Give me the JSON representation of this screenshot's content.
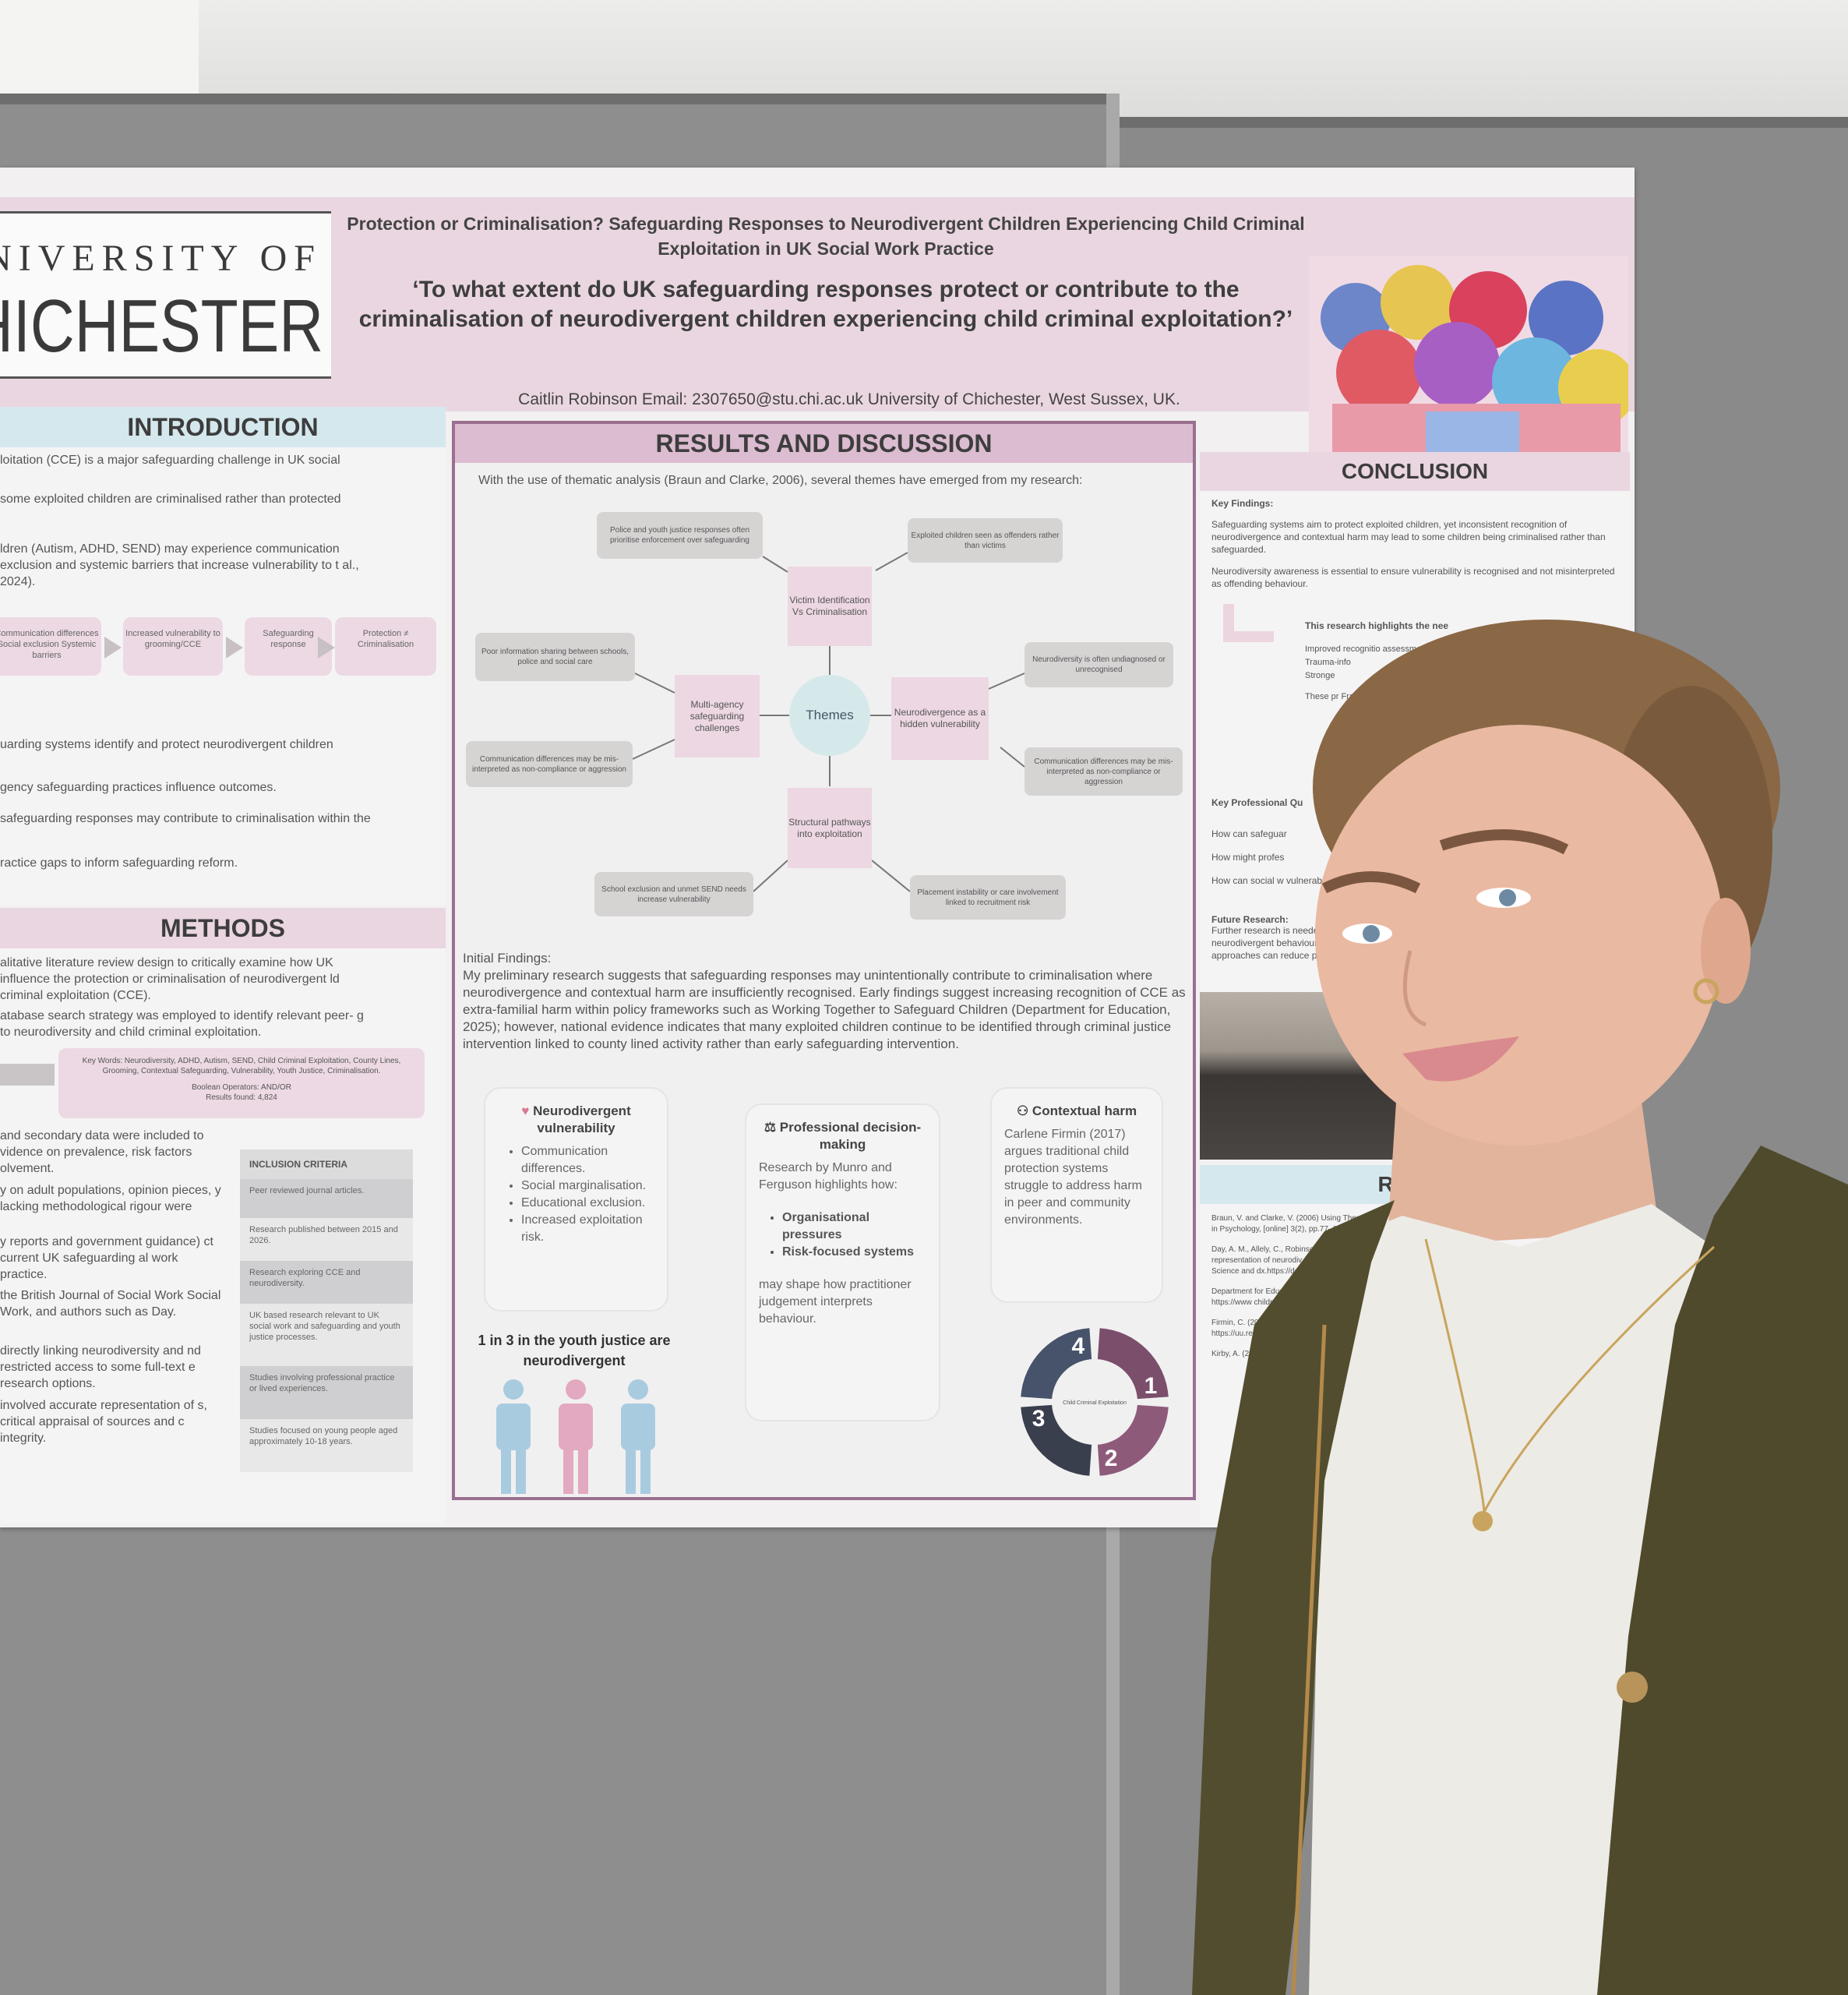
{
  "poster": {
    "logo": {
      "line1": "UNIVERSITY OF",
      "line2": "CHICHESTER"
    },
    "title": "Protection or Criminalisation? Safeguarding Responses to Neurodivergent Children Experiencing Child Criminal Exploitation in UK Social Work Practice",
    "question": "‘To what extent do UK safeguarding responses protect or contribute to the criminalisation of neurodivergent children experiencing child criminal exploitation?’",
    "author": "Caitlin Robinson  Email: 2307650@stu.chi.ac.uk  University of Chichester, West Sussex, UK.",
    "introduction": {
      "heading": "INTRODUCTION",
      "lines": [
        "loitation (CCE) is a major safeguarding challenge in UK social",
        "some exploited children are criminalised rather than protected",
        "ldren (Autism, ADHD, SEND) may experience communication exclusion and systemic barriers that increase vulnerability to t al., 2024)."
      ],
      "flow": [
        "Communication differences Social exclusion Systemic barriers",
        "Increased vulnerability to grooming/CCE",
        "Safeguarding response",
        "Protection ≠ Criminalisation"
      ],
      "aims": [
        "uarding systems identify and protect neurodivergent children",
        "gency safeguarding practices influence outcomes.",
        "safeguarding responses may contribute to criminalisation within the",
        "ractice gaps to inform safeguarding reform."
      ]
    },
    "methods": {
      "heading": "METHODS",
      "lines": [
        "alitative literature review design to critically examine how UK influence the protection or criminalisation of neurodivergent ld criminal exploitation (CCE).",
        "atabase search strategy was employed to identify relevant peer- g to neurodiversity and child criminal exploitation."
      ],
      "keywords": "Key Words: Neurodiversity, ADHD, Autism, SEND, Child Criminal Exploitation, County Lines, Grooming, Contextual Safeguarding, Vulnerability, Youth Justice, Criminalisation.",
      "boolean": "Boolean Operators: AND/OR",
      "results_found": "Results found: 4,824",
      "more": [
        "and secondary data were included to vidence on prevalence, risk factors olvement.",
        "y on adult populations, opinion pieces, y lacking methodological rigour were",
        "y reports and government guidance) ct current UK safeguarding al work practice.",
        "the British Journal of Social Work Social Work, and authors such as Day.",
        "directly linking neurodiversity and nd restricted access to some full-text e research options.",
        "involved accurate representation of s, critical appraisal of sources and c integrity."
      ],
      "inclusion_heading": "INCLUSION CRITERIA",
      "inclusion": [
        "Peer reviewed journal articles.",
        "Research published between 2015 and 2026.",
        "Research exploring CCE and neurodiversity.",
        "UK based research relevant to UK social work and safeguarding and youth justice processes.",
        "Studies involving professional practice or lived experiences.",
        "Studies focused on young people aged approximately 10-18 years."
      ]
    },
    "results": {
      "heading": "RESULTS AND DISCUSSION",
      "intro": "With the use of thematic analysis (Braun and Clarke, 2006), several themes have emerged from my research:",
      "center": "Themes",
      "themes": [
        "Victim Identification Vs Criminalisation",
        "Multi-agency safeguarding challenges",
        "Neurodivergence as a hidden vulnerability",
        "Structural pathways into exploitation"
      ],
      "subthemes": [
        "Police and youth justice responses often prioritise enforcement over safeguarding",
        "Exploited children seen as offenders rather than victims",
        "Poor information sharing between schools, police and social care",
        "Communication differences may be mis-interpreted as non-compliance or aggression",
        "Neurodiversity is often undiagnosed or unrecognised",
        "Communication differences may be mis-interpreted as non-compliance or aggression",
        "School exclusion and unmet SEND needs increase vulnerability",
        "Placement instability or care involvement linked to recruitment risk"
      ],
      "findings_label": "Initial Findings:",
      "findings": "My preliminary research suggests that safeguarding responses may unintentionally contribute to criminalisation where neurodivergence and contextual harm are insufficiently recognised. Early findings suggest increasing recognition of CCE as extra-familial harm within policy frameworks such as Working Together to Safeguard Children (Department for Education, 2025); however, national evidence indicates that many exploited children continue to be identified through criminal justice intervention linked to county lined activity rather than early safeguarding intervention.",
      "card1": {
        "icon": "heart-icon",
        "title": "Neurodivergent vulnerability",
        "items": [
          "Communication differences.",
          "Social marginalisation.",
          "Educational exclusion.",
          "Increased exploitation risk."
        ]
      },
      "card2": {
        "icon": "scales-icon",
        "title": "Professional decision-making",
        "text": "Research by Munro and Ferguson highlights how:",
        "items": [
          "Organisational pressures",
          "Risk-focused systems"
        ],
        "after": "may shape how practitioner judgement interprets behaviour."
      },
      "card3": {
        "icon": "people-icon",
        "title": "Contextual harm",
        "text": "Carlene Firmin (2017) argues traditional child protection systems struggle to address harm in peer and community environments."
      },
      "stat": "1 in 3 in the youth justice are neurodivergent",
      "stat_colors": [
        "#a9cbe0",
        "#e3a9c0",
        "#a9cbe0"
      ],
      "cycle": {
        "steps": [
          "1",
          "2",
          "3",
          "4"
        ],
        "center": "Child Criminal Exploitation",
        "colors": [
          "#7b4e6c",
          "#8e5a7a",
          "#3a3f4e",
          "#47536a"
        ]
      }
    },
    "conclusion": {
      "heading": "CONCLUSION",
      "key_findings": "Key Findings:",
      "points": [
        "Safeguarding systems aim to protect exploited children, yet inconsistent recognition of neurodivergence and contextual harm may lead to some children being criminalised rather than safeguarded.",
        "Neurodiversity awareness is essential to ensure vulnerability is recognised and not misinterpreted as offending behaviour."
      ],
      "highlight": "This research highlights the nee",
      "bullets": [
        "Improved recognitio assessments.",
        "Trauma-info",
        "Stronge"
      ],
      "these": "These pr Frame equ",
      "questions_label": "Key Professional Qu",
      "questions": [
        "How can safeguar",
        "How might profes",
        "How can social w vulnerability may be"
      ],
      "future_label": "Future Research:",
      "future": "Further research is needed neurodivergent behaviour w approaches can reduce pat"
    },
    "references": {
      "heading": "REFER",
      "items": [
        "Braun, V. and Clarke, V. (2006) Using Thema in Psychology, [online] 3(2), pp.77–101.",
        "Day, A. M., Allely, C., Robinson, L. over-representation of neurodiv Court. Medicine Science and dx.https://doi.org/10.1177/00",
        "Department for Educatio Available at: https://www children-2 [Accessed",
        "Firmin, C. (2017) C contextual framew https://uu.researc strategic-and-op",
        "Kirby, A. (2021) https://sdc.wel whole-child-b"
      ]
    }
  },
  "colors": {
    "accent_purple": "#9a6f8f",
    "header_pink": "#ead6e0",
    "intro_blue": "#d5e8ee",
    "jacket": "#524d2e",
    "top": "#ecebe5"
  }
}
